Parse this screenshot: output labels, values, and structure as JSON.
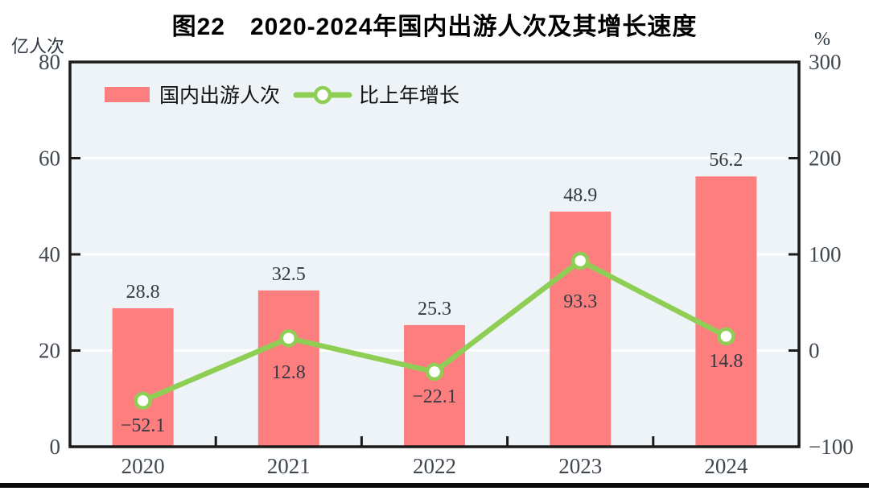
{
  "figure": {
    "title": "图22　2020-2024年国内出游人次及其增长速度",
    "left_axis_unit": "亿人次",
    "right_axis_unit": "%"
  },
  "legend": [
    {
      "label": "国内出游人次",
      "marker": "bar-swatch"
    },
    {
      "label": "比上年增长",
      "marker": "line-marker"
    }
  ],
  "colors": {
    "bar": "#fd7e7e",
    "line": "#8fce54",
    "marker_fill": "#ffffff",
    "plot_bg": "#edf3f7",
    "grid": "#ffffff",
    "axis": "#1a1a1a",
    "number_text": "#3f474f",
    "label_text": "#333a44"
  },
  "chart_data": {
    "type": "bar",
    "subtype": "bar+line combo, dual axis",
    "title": "图22　2020-2024年国内出游人次及其增长速度",
    "categories": [
      "2020",
      "2021",
      "2022",
      "2023",
      "2024"
    ],
    "series": [
      {
        "name": "国内出游人次",
        "type": "bar",
        "axis": "left",
        "unit": "亿人次",
        "color": "#fd7e7e",
        "values": [
          28.8,
          32.5,
          25.3,
          48.9,
          56.2
        ]
      },
      {
        "name": "比上年增长",
        "type": "line",
        "axis": "right",
        "unit": "%",
        "color": "#8fce54",
        "values": [
          -52.1,
          12.8,
          -22.1,
          93.3,
          14.8
        ]
      }
    ],
    "left_axis": {
      "label": "亿人次",
      "min": 0,
      "max": 80,
      "ticks": [
        0,
        20,
        40,
        60,
        80
      ]
    },
    "right_axis": {
      "label": "%",
      "min": -100,
      "max": 300,
      "ticks": [
        -100,
        0,
        100,
        200,
        300
      ]
    },
    "grid": true,
    "gridlines_at_left_values": [
      20,
      40,
      60
    ],
    "legend_position": "top-left inside plot",
    "plot_background": "#edf3f7"
  }
}
